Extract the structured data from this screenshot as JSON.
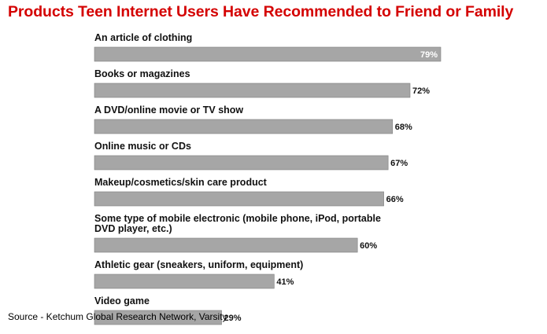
{
  "title": "Products Teen Internet Users Have Recommended to Friend or Family",
  "source": "Source - Ketchum Global Research Network, Varsity",
  "colors": {
    "title": "#d40000",
    "bar": "#a6a6a6",
    "bar_edge": "#7f7f7f"
  },
  "chart_data": {
    "type": "bar",
    "orientation": "horizontal",
    "title": "Products Teen Internet Users Have Recommended to Friend or Family",
    "categories": [
      [
        "An article of clothing"
      ],
      [
        "Books or magazines"
      ],
      [
        "A DVD/online movie or TV show"
      ],
      [
        "Online music or CDs"
      ],
      [
        "Makeup/cosmetics/skin care product"
      ],
      [
        "Some type of mobile electronic (mobile phone, iPod, portable",
        "DVD player, etc.)"
      ],
      [
        "Athletic gear (sneakers, uniform, equipment)"
      ],
      [
        "Video game"
      ]
    ],
    "values": [
      79,
      72,
      68,
      67,
      66,
      60,
      41,
      29
    ],
    "value_labels": [
      "79%",
      "72%",
      "68%",
      "67%",
      "66%",
      "60%",
      "41%",
      "29%"
    ],
    "unit": "%",
    "xlim": [
      0,
      79
    ],
    "grid": false,
    "legend": "none"
  }
}
